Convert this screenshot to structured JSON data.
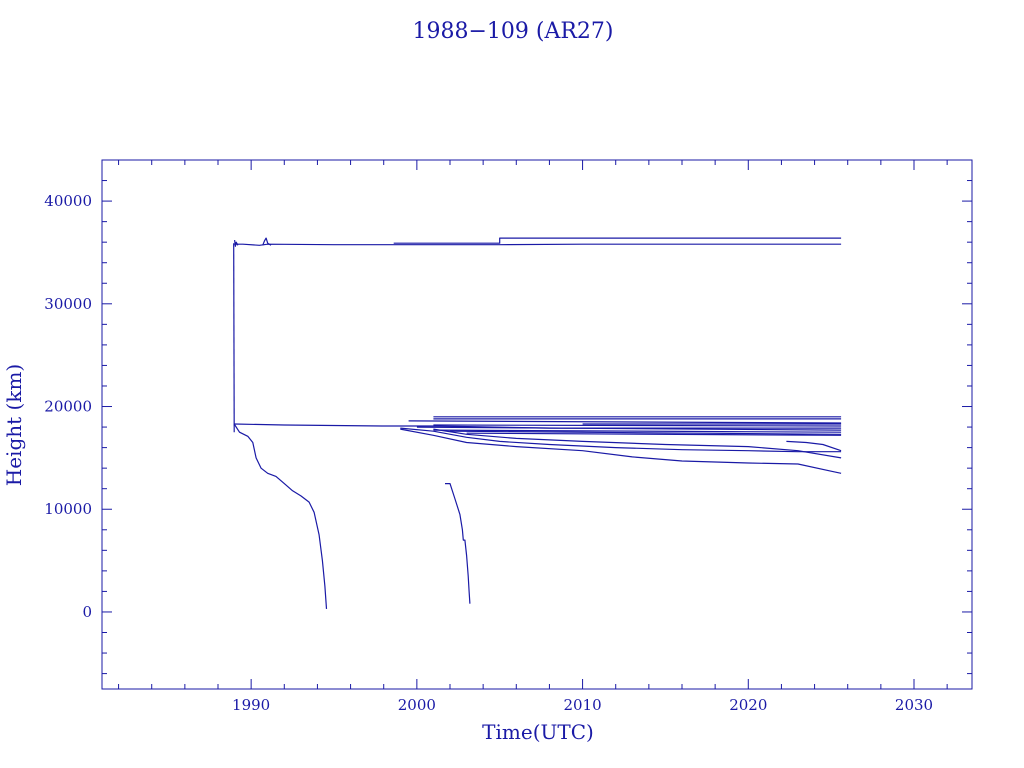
{
  "colors": {
    "ink": "#1a1aa6",
    "background": "#ffffff"
  },
  "chart_data": {
    "type": "line",
    "title": "1988−109 (AR27)",
    "xlabel": "Time(UTC)",
    "ylabel": "Height (km)",
    "xlim": [
      1981,
      2033.5
    ],
    "ylim": [
      -7500,
      44000
    ],
    "xticks": [
      1990,
      2000,
      2010,
      2020,
      2030
    ],
    "yticks": [
      0,
      10000,
      20000,
      30000,
      40000
    ],
    "grid": false,
    "legend": "none",
    "series": [
      {
        "points": [
          [
            1988.98,
            35800
          ],
          [
            1989.5,
            35800
          ],
          [
            1990.5,
            35700
          ],
          [
            1991,
            35800
          ],
          [
            1995,
            35750
          ],
          [
            2000,
            35750
          ],
          [
            2005,
            35750
          ],
          [
            2010,
            35800
          ],
          [
            2025.6,
            35800
          ]
        ]
      },
      {
        "points": [
          [
            1998.6,
            35900
          ],
          [
            2005,
            35900
          ],
          [
            2005,
            36400
          ],
          [
            2025.6,
            36400
          ]
        ]
      },
      {
        "points": [
          [
            1989,
            36200
          ],
          [
            1989.05,
            35600
          ],
          [
            1989.1,
            36000
          ],
          [
            1989.2,
            35700
          ]
        ]
      },
      {
        "points": [
          [
            1990.7,
            35700
          ],
          [
            1990.8,
            36100
          ],
          [
            1990.9,
            36400
          ],
          [
            1991,
            35900
          ],
          [
            1991.2,
            35700
          ]
        ]
      },
      {
        "points": [
          [
            1988.95,
            35900
          ],
          [
            1988.98,
            17500
          ]
        ]
      },
      {
        "points": [
          [
            1988.98,
            18300
          ],
          [
            1992,
            18200
          ],
          [
            1998,
            18100
          ],
          [
            2001,
            18100
          ],
          [
            2008,
            17900
          ],
          [
            2015,
            17900
          ],
          [
            2025.6,
            17900
          ]
        ]
      },
      {
        "points": [
          [
            1988.98,
            18300
          ],
          [
            1989.3,
            17500
          ],
          [
            1989.8,
            17100
          ],
          [
            1990.1,
            16500
          ],
          [
            1990.3,
            15000
          ],
          [
            1990.6,
            14000
          ],
          [
            1991,
            13500
          ],
          [
            1991.5,
            13200
          ],
          [
            1992,
            12500
          ],
          [
            1992.5,
            11800
          ],
          [
            1993,
            11300
          ],
          [
            1993.5,
            10700
          ],
          [
            1993.8,
            9700
          ],
          [
            1994.1,
            7500
          ],
          [
            1994.3,
            5000
          ],
          [
            1994.45,
            2500
          ],
          [
            1994.55,
            300
          ]
        ]
      },
      {
        "points": [
          [
            2001.7,
            12500
          ],
          [
            2002,
            12500
          ],
          [
            2002.3,
            11000
          ],
          [
            2002.6,
            9500
          ],
          [
            2002.75,
            8000
          ],
          [
            2002.8,
            7000
          ],
          [
            2002.9,
            7000
          ],
          [
            2003,
            5500
          ],
          [
            2003.1,
            3500
          ],
          [
            2003.15,
            2000
          ],
          [
            2003.2,
            800
          ]
        ]
      },
      {
        "points": [
          [
            1999,
            17900
          ],
          [
            2001,
            17600
          ],
          [
            2003,
            17000
          ],
          [
            2005,
            16600
          ],
          [
            2008,
            16300
          ],
          [
            2012,
            16000
          ],
          [
            2016,
            15800
          ],
          [
            2020,
            15700
          ],
          [
            2023,
            15600
          ],
          [
            2025.6,
            15600
          ]
        ]
      },
      {
        "points": [
          [
            1999,
            17800
          ],
          [
            2001,
            17200
          ],
          [
            2003,
            16500
          ],
          [
            2006,
            16100
          ],
          [
            2010,
            15700
          ],
          [
            2013,
            15100
          ],
          [
            2016,
            14700
          ],
          [
            2020,
            14500
          ],
          [
            2023,
            14400
          ],
          [
            2025,
            13700
          ],
          [
            2025.6,
            13500
          ]
        ]
      },
      {
        "points": [
          [
            2001,
            17800
          ],
          [
            2003,
            17300
          ],
          [
            2006,
            16900
          ],
          [
            2010,
            16600
          ],
          [
            2015,
            16300
          ],
          [
            2020,
            16100
          ],
          [
            2023,
            15700
          ],
          [
            2025.6,
            15000
          ]
        ]
      },
      {
        "points": [
          [
            2022.3,
            16600
          ],
          [
            2023.5,
            16500
          ],
          [
            2024.5,
            16300
          ],
          [
            2025.6,
            15700
          ]
        ]
      },
      {
        "points": [
          [
            2001,
            18800
          ],
          [
            2025.6,
            18800
          ]
        ]
      },
      {
        "points": [
          [
            2001,
            19000
          ],
          [
            2025.6,
            19000
          ]
        ]
      },
      {
        "points": [
          [
            1999.5,
            18600
          ],
          [
            2025.6,
            18400
          ]
        ]
      },
      {
        "points": [
          [
            2001,
            18200
          ],
          [
            2025.6,
            18100
          ]
        ]
      },
      {
        "points": [
          [
            2000,
            18000
          ],
          [
            2025.6,
            17700
          ]
        ]
      },
      {
        "points": [
          [
            2001,
            17700
          ],
          [
            2025.6,
            17500
          ]
        ]
      },
      {
        "points": [
          [
            2002,
            17600
          ],
          [
            2025.6,
            17300
          ]
        ]
      },
      {
        "points": [
          [
            2003,
            17400
          ],
          [
            2025.6,
            17200
          ]
        ]
      },
      {
        "points": [
          [
            2010,
            18300
          ],
          [
            2025.6,
            18300
          ]
        ]
      }
    ]
  }
}
